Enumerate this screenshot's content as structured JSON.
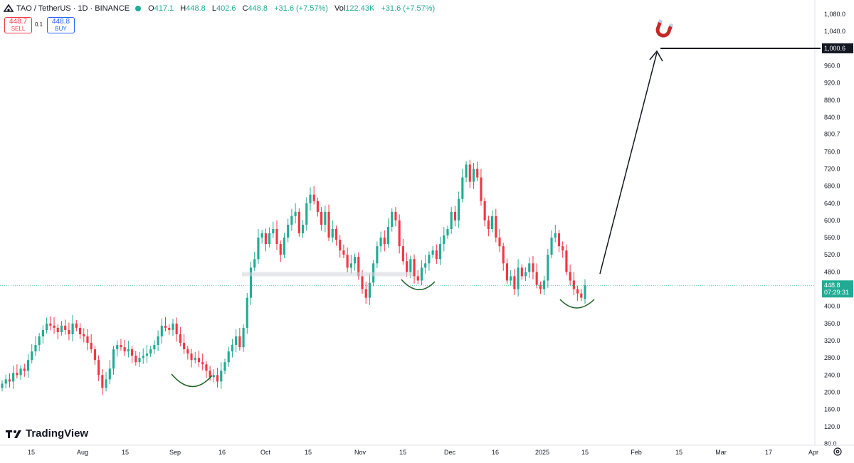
{
  "header": {
    "symbol": "TAO / TetherUS · 1D · BINANCE",
    "open_label": "O",
    "open": "417.1",
    "high_label": "H",
    "high": "448.8",
    "low_label": "L",
    "low": "402.6",
    "close_label": "C",
    "close": "448.8",
    "change": "+31.6 (+7.57%)",
    "vol_label": "Vol",
    "vol": "122.43K",
    "vol_change": "+31.6 (+7.57%)"
  },
  "trade": {
    "sell_price": "448.7",
    "sell_label": "SELL",
    "spread": "0.1",
    "buy_price": "448.8",
    "buy_label": "BUY"
  },
  "branding": {
    "name": "TradingView"
  },
  "icons": [
    "logo-icon",
    "magnet-icon",
    "settings-icon"
  ],
  "colors": {
    "up": "#22ab94",
    "down": "#f23645",
    "arrow": "#131722"
  },
  "chart_data": {
    "type": "candlestick",
    "y_axis_labels": [
      "1,080.0",
      "1,040.0",
      "960.0",
      "920.0",
      "880.0",
      "840.0",
      "800.7",
      "760.0",
      "720.0",
      "680.0",
      "640.0",
      "600.0",
      "560.0",
      "520.0",
      "480.0",
      "400.0",
      "360.0",
      "320.0",
      "280.0",
      "240.0",
      "200.0",
      "160.0",
      "120.0",
      "80.0"
    ],
    "x_axis_labels": [
      "15",
      "Aug",
      "15",
      "Sep",
      "16",
      "Oct",
      "15",
      "Nov",
      "15",
      "Dec",
      "16",
      "2025",
      "15",
      "Feb",
      "15",
      "Mar",
      "17",
      "Apr"
    ],
    "last_price": "448.8",
    "countdown": "07:29:31",
    "target_price": "1,000.6",
    "closes": [
      220,
      230,
      225,
      245,
      240,
      255,
      250,
      275,
      295,
      310,
      330,
      345,
      360,
      355,
      350,
      340,
      355,
      345,
      335,
      360,
      350,
      335,
      330,
      315,
      300,
      275,
      240,
      210,
      230,
      255,
      300,
      310,
      305,
      295,
      300,
      285,
      270,
      280,
      285,
      290,
      300,
      310,
      330,
      355,
      350,
      345,
      360,
      335,
      315,
      300,
      290,
      275,
      280,
      270,
      265,
      250,
      235,
      240,
      225,
      250,
      270,
      295,
      310,
      330,
      305,
      350,
      420,
      490,
      510,
      560,
      570,
      545,
      570,
      580,
      545,
      520,
      560,
      590,
      610,
      620,
      570,
      590,
      640,
      660,
      645,
      620,
      590,
      620,
      560,
      580,
      555,
      530,
      520,
      490,
      500,
      515,
      470,
      440,
      420,
      455,
      500,
      540,
      560,
      545,
      585,
      620,
      600,
      540,
      505,
      480,
      510,
      470,
      460,
      490,
      500,
      520,
      530,
      510,
      545,
      565,
      580,
      620,
      600,
      650,
      700,
      730,
      690,
      720,
      700,
      645,
      600,
      580,
      610,
      560,
      540,
      500,
      460,
      470,
      440,
      490,
      470,
      480,
      500,
      480,
      450,
      440,
      460,
      520,
      560,
      570,
      540,
      530,
      480,
      460,
      440,
      430,
      420,
      448.8
    ],
    "opens": [
      210,
      220,
      230,
      225,
      245,
      240,
      255,
      250,
      275,
      295,
      310,
      330,
      345,
      360,
      355,
      350,
      340,
      355,
      345,
      335,
      360,
      350,
      335,
      330,
      315,
      300,
      275,
      240,
      210,
      230,
      255,
      300,
      310,
      305,
      295,
      300,
      285,
      270,
      280,
      285,
      290,
      300,
      310,
      330,
      355,
      350,
      345,
      360,
      335,
      315,
      300,
      290,
      275,
      280,
      270,
      265,
      250,
      235,
      240,
      225,
      250,
      270,
      295,
      310,
      330,
      305,
      350,
      420,
      490,
      510,
      560,
      570,
      545,
      570,
      580,
      545,
      520,
      560,
      590,
      610,
      620,
      570,
      590,
      640,
      660,
      645,
      620,
      590,
      620,
      560,
      580,
      555,
      530,
      520,
      490,
      500,
      515,
      470,
      440,
      420,
      455,
      500,
      540,
      560,
      545,
      585,
      620,
      600,
      540,
      505,
      480,
      510,
      470,
      460,
      490,
      500,
      520,
      530,
      510,
      545,
      565,
      580,
      620,
      600,
      650,
      700,
      730,
      690,
      720,
      700,
      645,
      600,
      580,
      610,
      560,
      540,
      500,
      460,
      470,
      440,
      490,
      470,
      480,
      500,
      480,
      450,
      440,
      460,
      520,
      560,
      570,
      540,
      530,
      480,
      460,
      440,
      430,
      417.1
    ],
    "annotations": {
      "support_zone": [
        480,
        470
      ],
      "arrow_target": "1,000.6",
      "rounded_bottoms": 3
    }
  }
}
